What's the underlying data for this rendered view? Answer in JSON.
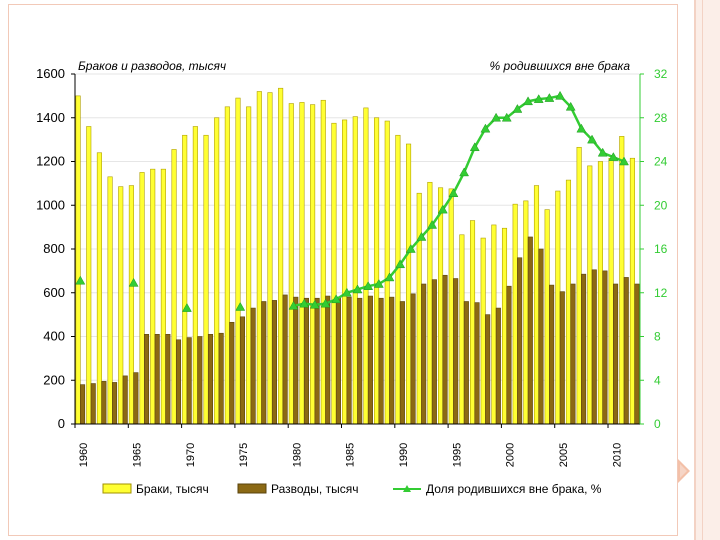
{
  "chart_data": {
    "type": "bar",
    "left_axis_title": "Браков и разводов, тысяч",
    "right_axis_title": "% родившихся вне брака",
    "x_labels": [
      "1960",
      "1965",
      "1970",
      "1975",
      "1980",
      "1985",
      "1990",
      "1995",
      "2000",
      "2005",
      "2010"
    ],
    "left_ticks": [
      "0",
      "200",
      "400",
      "600",
      "800",
      "1000",
      "1200",
      "1400",
      "1600"
    ],
    "right_ticks": [
      "0",
      "4",
      "8",
      "12",
      "16",
      "20",
      "24",
      "28",
      "32"
    ],
    "ylim_left": [
      0,
      1600
    ],
    "ylim_right": [
      0,
      32
    ],
    "years": [
      1960,
      1961,
      1962,
      1963,
      1964,
      1965,
      1966,
      1967,
      1968,
      1969,
      1970,
      1971,
      1972,
      1973,
      1974,
      1975,
      1976,
      1977,
      1978,
      1979,
      1980,
      1981,
      1982,
      1983,
      1984,
      1985,
      1986,
      1987,
      1988,
      1989,
      1990,
      1991,
      1992,
      1993,
      1994,
      1995,
      1996,
      1997,
      1998,
      1999,
      2000,
      2001,
      2002,
      2003,
      2004,
      2005,
      2006,
      2007,
      2008,
      2009,
      2010,
      2011,
      2012
    ],
    "series": [
      {
        "name": "Браки, тысяч",
        "color": "#ffff33",
        "values": [
          1500,
          1360,
          1240,
          1130,
          1085,
          1090,
          1150,
          1165,
          1165,
          1255,
          1320,
          1360,
          1320,
          1400,
          1450,
          1490,
          1450,
          1520,
          1515,
          1535,
          1465,
          1470,
          1460,
          1480,
          1375,
          1390,
          1405,
          1445,
          1400,
          1385,
          1320,
          1280,
          1055,
          1105,
          1080,
          1075,
          865,
          930,
          850,
          910,
          895,
          1005,
          1020,
          1090,
          980,
          1065,
          1115,
          1265,
          1180,
          1200,
          1215,
          1315,
          1215
        ]
      },
      {
        "name": "Разводы, тысяч",
        "color": "#8b6914",
        "values": [
          180,
          185,
          195,
          190,
          220,
          235,
          410,
          410,
          410,
          385,
          395,
          400,
          410,
          415,
          465,
          490,
          530,
          560,
          565,
          590,
          580,
          575,
          575,
          585,
          580,
          580,
          575,
          585,
          575,
          580,
          560,
          595,
          640,
          660,
          680,
          665,
          560,
          555,
          500,
          530,
          630,
          760,
          855,
          800,
          635,
          605,
          640,
          685,
          705,
          700,
          640,
          670,
          640
        ]
      }
    ],
    "line_series": {
      "name": "Доля родившихся вне брака, %",
      "color": "#33cc33",
      "years": [
        1960,
        1965,
        1970,
        1975,
        1980,
        1981,
        1982,
        1983,
        1984,
        1985,
        1986,
        1987,
        1988,
        1989,
        1990,
        1991,
        1992,
        1993,
        1994,
        1995,
        1996,
        1997,
        1998,
        1999,
        2000,
        2001,
        2002,
        2003,
        2004,
        2005,
        2006,
        2007,
        2008,
        2009,
        2010,
        2011
      ],
      "values": [
        13.1,
        12.9,
        10.6,
        10.7,
        10.8,
        11.0,
        10.9,
        11.0,
        11.4,
        12.0,
        12.3,
        12.6,
        12.8,
        13.4,
        14.6,
        16.0,
        17.1,
        18.2,
        19.6,
        21.1,
        23.0,
        25.3,
        27.0,
        28.0,
        28.0,
        28.8,
        29.5,
        29.7,
        29.8,
        30.0,
        29.0,
        27.0,
        26.0,
        24.8,
        24.4,
        24.0
      ]
    }
  }
}
